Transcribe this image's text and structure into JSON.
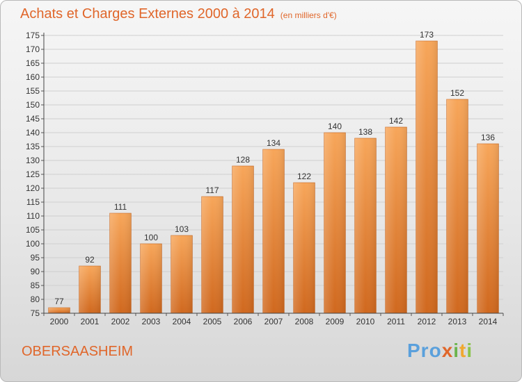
{
  "title": "Achats et Charges Externes 2000 à 2014",
  "subtitle": "(en milliers d'€)",
  "location": "OBERSAASHEIM",
  "logo": [
    "Pro",
    "x",
    "i",
    "t",
    "i"
  ],
  "colors": {
    "bar_top": "#f7a65a",
    "bar_bottom": "#d0681e",
    "title": "#e0662a",
    "grid": "#cfcfcf"
  },
  "chart_data": {
    "type": "bar",
    "title": "Achats et Charges Externes 2000 à 2014",
    "subtitle": "(en milliers d'€)",
    "categories": [
      "2000",
      "2001",
      "2002",
      "2003",
      "2004",
      "2005",
      "2006",
      "2007",
      "2008",
      "2009",
      "2010",
      "2011",
      "2012",
      "2013",
      "2014"
    ],
    "values": [
      77,
      92,
      111,
      100,
      103,
      117,
      128,
      134,
      122,
      140,
      138,
      142,
      173,
      152,
      136
    ],
    "ylim": [
      75,
      175
    ],
    "yticks": [
      75,
      80,
      85,
      90,
      95,
      100,
      105,
      110,
      115,
      120,
      125,
      130,
      135,
      140,
      145,
      150,
      155,
      160,
      165,
      170,
      175
    ],
    "grid": true,
    "xlabel": "",
    "ylabel": ""
  }
}
